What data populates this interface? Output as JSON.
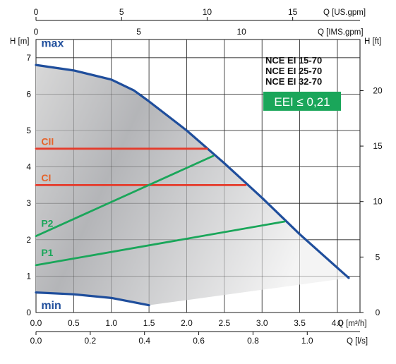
{
  "chart_data": {
    "type": "line",
    "models": [
      "NCE EI 15-70",
      "NCE EI 25-70",
      "NCE EI 32-70"
    ],
    "eei_badge": "EEI ≤ 0,21",
    "axes": {
      "x_main": {
        "label": "Q [m³/h]",
        "range": [
          0,
          4.3
        ],
        "ticks": [
          "0.0",
          "0.5",
          "1.0",
          "1.5",
          "2.0",
          "2.5",
          "3.0",
          "3.5",
          "4.0"
        ],
        "values": [
          0,
          0.5,
          1.0,
          1.5,
          2.0,
          2.5,
          3.0,
          3.5,
          4.0
        ]
      },
      "x_ls": {
        "label": "Q [l/s]",
        "ticks": [
          "0.0",
          "0.2",
          "0.4",
          "0.6",
          "0.8",
          "1.0"
        ],
        "values": [
          0,
          0.2,
          0.4,
          0.6,
          0.8,
          1.0
        ]
      },
      "x_usgpm": {
        "label": "Q [US.gpm]",
        "ticks": [
          "0",
          "5",
          "10",
          "15"
        ],
        "values": [
          0,
          5,
          10,
          15
        ]
      },
      "x_imsgpm": {
        "label": "Q [IMS.gpm]",
        "ticks": [
          "0",
          "5",
          "10"
        ],
        "values": [
          0,
          5,
          10
        ]
      },
      "y_left": {
        "label": "H [m]",
        "range": [
          0,
          7.5
        ],
        "ticks": [
          "0",
          "1",
          "2",
          "3",
          "4",
          "5",
          "6",
          "7"
        ],
        "values": [
          0,
          1,
          2,
          3,
          4,
          5,
          6,
          7
        ]
      },
      "y_right": {
        "label": "H [ft]",
        "ticks": [
          "0",
          "5",
          "10",
          "15",
          "20"
        ],
        "values": [
          0,
          5,
          10,
          15,
          20
        ]
      }
    },
    "grid": true,
    "series": [
      {
        "name": "max",
        "color": "#1f4e9c",
        "x": [
          0,
          0.5,
          1.0,
          1.3,
          1.5,
          2.0,
          2.5,
          3.0,
          3.5,
          4.15
        ],
        "y": [
          6.8,
          6.65,
          6.4,
          6.1,
          5.8,
          5.0,
          4.1,
          3.15,
          2.15,
          0.95
        ]
      },
      {
        "name": "min",
        "color": "#1f4e9c",
        "x": [
          0,
          0.5,
          1.0,
          1.5
        ],
        "y": [
          0.55,
          0.5,
          0.4,
          0.2
        ]
      },
      {
        "name": "CII",
        "color": "#e53a2a",
        "x": [
          0,
          2.27
        ],
        "y": [
          4.5,
          4.5
        ]
      },
      {
        "name": "CI",
        "color": "#e53a2a",
        "x": [
          0,
          2.78
        ],
        "y": [
          3.5,
          3.5
        ]
      },
      {
        "name": "P2",
        "color": "#1aa65a",
        "x": [
          0,
          2.35
        ],
        "y": [
          2.1,
          4.3
        ]
      },
      {
        "name": "P1",
        "color": "#1aa65a",
        "x": [
          0,
          3.3
        ],
        "y": [
          1.3,
          2.5
        ]
      }
    ],
    "curve_labels": [
      {
        "text": "max",
        "color": "#1f4e9c",
        "x": 0.05,
        "y": 7.3
      },
      {
        "text": "min",
        "color": "#1f4e9c",
        "x": 0.05,
        "y": 0.1
      },
      {
        "text": "CII",
        "color": "#e5632a",
        "x": 0.05,
        "y": 4.6
      },
      {
        "text": "CI",
        "color": "#e5632a",
        "x": 0.05,
        "y": 3.6
      },
      {
        "text": "P2",
        "color": "#1aa65a",
        "x": 0.05,
        "y": 2.35
      },
      {
        "text": "P1",
        "color": "#1aa65a",
        "x": 0.05,
        "y": 1.55
      }
    ]
  }
}
